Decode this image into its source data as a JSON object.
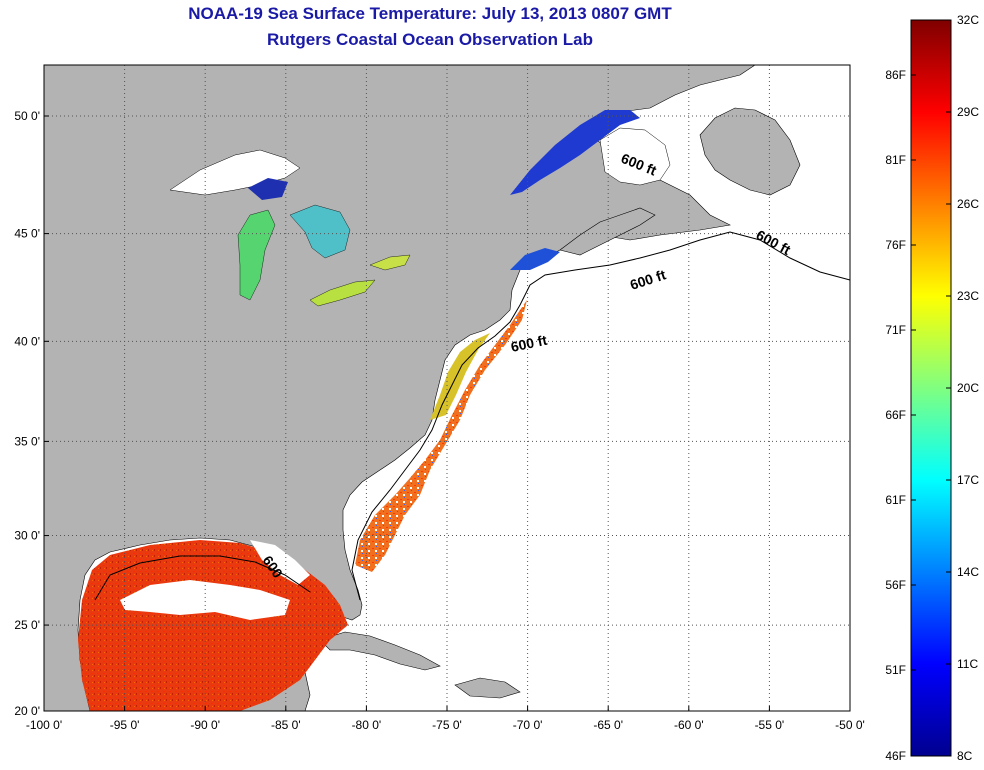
{
  "title": "NOAA-19 Sea Surface Temperature:  July 13, 2013 0807 GMT",
  "subtitle": "Rutgers Coastal Ocean Observation Lab",
  "lon_ticks": [
    "-100 0'",
    "-95 0'",
    "-90 0'",
    "-85 0'",
    "-80 0'",
    "-75 0'",
    "-70 0'",
    "-65 0'",
    "-60 0'",
    "-55 0'",
    "-50 0'"
  ],
  "lat_ticks": [
    "20 0'",
    "25 0'",
    "30 0'",
    "35 0'",
    "40 0'",
    "45 0'",
    "50 0'"
  ],
  "contour_labels": [
    "600 ft",
    "600 ft",
    "600 ft",
    "600 ft",
    "600"
  ],
  "colorbar": {
    "celsius": [
      "32C",
      "29C",
      "26C",
      "23C",
      "20C",
      "17C",
      "14C",
      "11C",
      "8C"
    ],
    "fahrenheit": [
      "86F",
      "81F",
      "76F",
      "71F",
      "66F",
      "61F",
      "56F",
      "51F",
      "46F"
    ],
    "colors": [
      "#7f0000",
      "#ff0000",
      "#ff8000",
      "#ffff00",
      "#80ff80",
      "#00ffff",
      "#0080ff",
      "#0000ff",
      "#00008f"
    ]
  },
  "colors": {
    "land": "#b3b3b3",
    "ocean": "#ffffff",
    "title": "#1a1aa6",
    "grid": "#555555"
  }
}
